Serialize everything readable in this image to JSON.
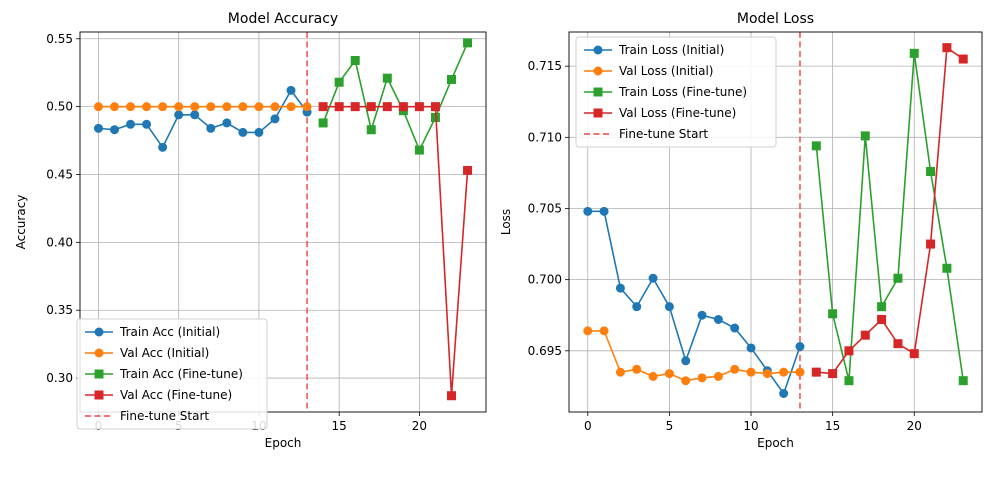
{
  "colors": {
    "blue": "#1f77b4",
    "orange": "#ff7f0e",
    "green": "#2ca02c",
    "red": "#d62728",
    "vline": "#ef4444",
    "grid": "#b0b0b0"
  },
  "chart_data": [
    {
      "type": "line",
      "title": "Model Accuracy",
      "xlabel": "Epoch",
      "ylabel": "Accuracy",
      "xlim": [
        -1.15,
        24.15
      ],
      "ylim": [
        0.275,
        0.555
      ],
      "xticks": [
        0,
        5,
        10,
        15,
        20
      ],
      "yticks": [
        0.3,
        0.35,
        0.4,
        0.45,
        0.5,
        0.55
      ],
      "ytick_labels": [
        "0.30",
        "0.35",
        "0.40",
        "0.45",
        "0.50",
        "0.55"
      ],
      "grid": true,
      "legend_position": "lower-left",
      "vline": {
        "x": 13,
        "label": "Fine-tune Start"
      },
      "series": [
        {
          "name": "Train Acc (Initial)",
          "color": "blue",
          "marker": "circle",
          "x": [
            0,
            1,
            2,
            3,
            4,
            5,
            6,
            7,
            8,
            9,
            10,
            11,
            12,
            13
          ],
          "y": [
            0.484,
            0.483,
            0.487,
            0.487,
            0.47,
            0.494,
            0.494,
            0.484,
            0.488,
            0.481,
            0.481,
            0.491,
            0.512,
            0.496
          ]
        },
        {
          "name": "Val Acc (Initial)",
          "color": "orange",
          "marker": "circle",
          "x": [
            0,
            1,
            2,
            3,
            4,
            5,
            6,
            7,
            8,
            9,
            10,
            11,
            12,
            13
          ],
          "y": [
            0.5,
            0.5,
            0.5,
            0.5,
            0.5,
            0.5,
            0.5,
            0.5,
            0.5,
            0.5,
            0.5,
            0.5,
            0.5,
            0.5
          ]
        },
        {
          "name": "Train Acc (Fine-tune)",
          "color": "green",
          "marker": "square",
          "x": [
            14,
            15,
            16,
            17,
            18,
            19,
            20,
            21,
            22,
            23
          ],
          "y": [
            0.488,
            0.518,
            0.534,
            0.483,
            0.521,
            0.497,
            0.468,
            0.492,
            0.52,
            0.547
          ]
        },
        {
          "name": "Val Acc (Fine-tune)",
          "color": "red",
          "marker": "square",
          "x": [
            14,
            15,
            16,
            17,
            18,
            19,
            20,
            21,
            22,
            23
          ],
          "y": [
            0.5,
            0.5,
            0.5,
            0.5,
            0.5,
            0.5,
            0.5,
            0.5,
            0.287,
            0.453
          ]
        }
      ]
    },
    {
      "type": "line",
      "title": "Model Loss",
      "xlabel": "Epoch",
      "ylabel": "Loss",
      "xlim": [
        -1.15,
        24.15
      ],
      "ylim": [
        0.6907,
        0.7174
      ],
      "xticks": [
        0,
        5,
        10,
        15,
        20
      ],
      "yticks": [
        0.695,
        0.7,
        0.705,
        0.71,
        0.715
      ],
      "ytick_labels": [
        "0.695",
        "0.700",
        "0.705",
        "0.710",
        "0.715"
      ],
      "grid": true,
      "legend_position": "upper-left",
      "vline": {
        "x": 13,
        "label": "Fine-tune Start"
      },
      "series": [
        {
          "name": "Train Loss (Initial)",
          "color": "blue",
          "marker": "circle",
          "x": [
            0,
            1,
            2,
            3,
            4,
            5,
            6,
            7,
            8,
            9,
            10,
            11,
            12,
            13
          ],
          "y": [
            0.7048,
            0.7048,
            0.6994,
            0.6981,
            0.7001,
            0.6981,
            0.6943,
            0.6975,
            0.6972,
            0.6966,
            0.6952,
            0.6936,
            0.692,
            0.6953
          ]
        },
        {
          "name": "Val Loss (Initial)",
          "color": "orange",
          "marker": "circle",
          "x": [
            0,
            1,
            2,
            3,
            4,
            5,
            6,
            7,
            8,
            9,
            10,
            11,
            12,
            13
          ],
          "y": [
            0.6964,
            0.6964,
            0.6935,
            0.6937,
            0.6932,
            0.6934,
            0.6929,
            0.6931,
            0.6932,
            0.6937,
            0.6935,
            0.6934,
            0.6935,
            0.6935
          ]
        },
        {
          "name": "Train Loss (Fine-tune)",
          "color": "green",
          "marker": "square",
          "x": [
            14,
            15,
            16,
            17,
            18,
            19,
            20,
            21,
            22,
            23
          ],
          "y": [
            0.7094,
            0.6976,
            0.6929,
            0.7101,
            0.6981,
            0.7001,
            0.7159,
            0.7076,
            0.7008,
            0.6929
          ]
        },
        {
          "name": "Val Loss (Fine-tune)",
          "color": "red",
          "marker": "square",
          "x": [
            14,
            15,
            16,
            17,
            18,
            19,
            20,
            21,
            22,
            23
          ],
          "y": [
            0.6935,
            0.6934,
            0.695,
            0.6961,
            0.6972,
            0.6955,
            0.6948,
            0.7025,
            0.7163,
            0.7155
          ]
        }
      ]
    }
  ]
}
